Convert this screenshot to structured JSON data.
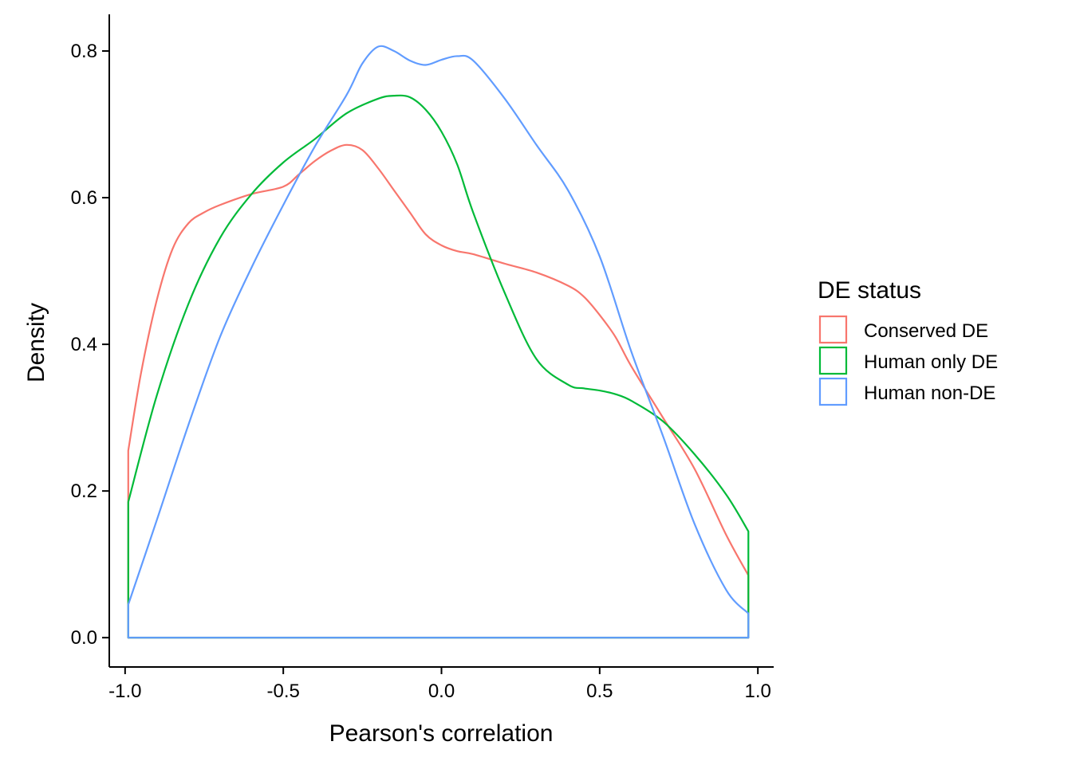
{
  "chart_data": {
    "type": "line",
    "subtype": "density",
    "title": "",
    "xlabel": "Pearson's correlation",
    "ylabel": "Density",
    "xlim": [
      -1.05,
      1.05
    ],
    "ylim": [
      -0.04,
      0.85
    ],
    "x_ticks": [
      -1.0,
      -0.5,
      0.0,
      0.5,
      1.0
    ],
    "x_tick_labels": [
      "-1.0",
      "-0.5",
      "0.0",
      "0.5",
      "1.0"
    ],
    "y_ticks": [
      0.0,
      0.2,
      0.4,
      0.6,
      0.8
    ],
    "y_tick_labels": [
      "0.0",
      "0.2",
      "0.4",
      "0.6",
      "0.8"
    ],
    "grid": false,
    "legend": {
      "title": "DE status",
      "placement": "right",
      "entries": [
        "Conserved DE",
        "Human only DE",
        "Human non-DE"
      ]
    },
    "series": [
      {
        "name": "Conserved DE",
        "color": "#F8766D",
        "x": [
          -0.99,
          -0.95,
          -0.9,
          -0.85,
          -0.8,
          -0.75,
          -0.7,
          -0.6,
          -0.5,
          -0.45,
          -0.4,
          -0.35,
          -0.3,
          -0.25,
          -0.2,
          -0.15,
          -0.1,
          -0.05,
          0.0,
          0.05,
          0.1,
          0.2,
          0.3,
          0.4,
          0.45,
          0.5,
          0.55,
          0.6,
          0.7,
          0.8,
          0.9,
          0.97
        ],
        "y": [
          0.255,
          0.36,
          0.46,
          0.53,
          0.565,
          0.58,
          0.59,
          0.605,
          0.615,
          0.632,
          0.65,
          0.664,
          0.672,
          0.665,
          0.64,
          0.61,
          0.58,
          0.55,
          0.535,
          0.527,
          0.523,
          0.51,
          0.498,
          0.48,
          0.465,
          0.44,
          0.41,
          0.37,
          0.3,
          0.23,
          0.14,
          0.085
        ]
      },
      {
        "name": "Human only DE",
        "color": "#00BA38",
        "x": [
          -0.99,
          -0.9,
          -0.8,
          -0.7,
          -0.6,
          -0.5,
          -0.4,
          -0.3,
          -0.2,
          -0.15,
          -0.1,
          -0.05,
          0.0,
          0.05,
          0.1,
          0.2,
          0.3,
          0.4,
          0.45,
          0.5,
          0.55,
          0.6,
          0.7,
          0.8,
          0.9,
          0.97
        ],
        "y": [
          0.185,
          0.33,
          0.455,
          0.545,
          0.605,
          0.648,
          0.68,
          0.715,
          0.735,
          0.739,
          0.737,
          0.72,
          0.69,
          0.645,
          0.58,
          0.47,
          0.38,
          0.345,
          0.34,
          0.337,
          0.332,
          0.323,
          0.295,
          0.25,
          0.195,
          0.145
        ]
      },
      {
        "name": "Human non-DE",
        "color": "#619CFF",
        "x": [
          -0.99,
          -0.9,
          -0.8,
          -0.7,
          -0.6,
          -0.5,
          -0.4,
          -0.3,
          -0.25,
          -0.2,
          -0.15,
          -0.1,
          -0.05,
          0.0,
          0.05,
          0.1,
          0.2,
          0.3,
          0.4,
          0.5,
          0.6,
          0.7,
          0.8,
          0.9,
          0.97
        ],
        "y": [
          0.045,
          0.16,
          0.29,
          0.41,
          0.505,
          0.59,
          0.67,
          0.74,
          0.783,
          0.806,
          0.8,
          0.787,
          0.781,
          0.788,
          0.793,
          0.787,
          0.735,
          0.672,
          0.61,
          0.52,
          0.39,
          0.275,
          0.155,
          0.065,
          0.033
        ]
      }
    ]
  }
}
